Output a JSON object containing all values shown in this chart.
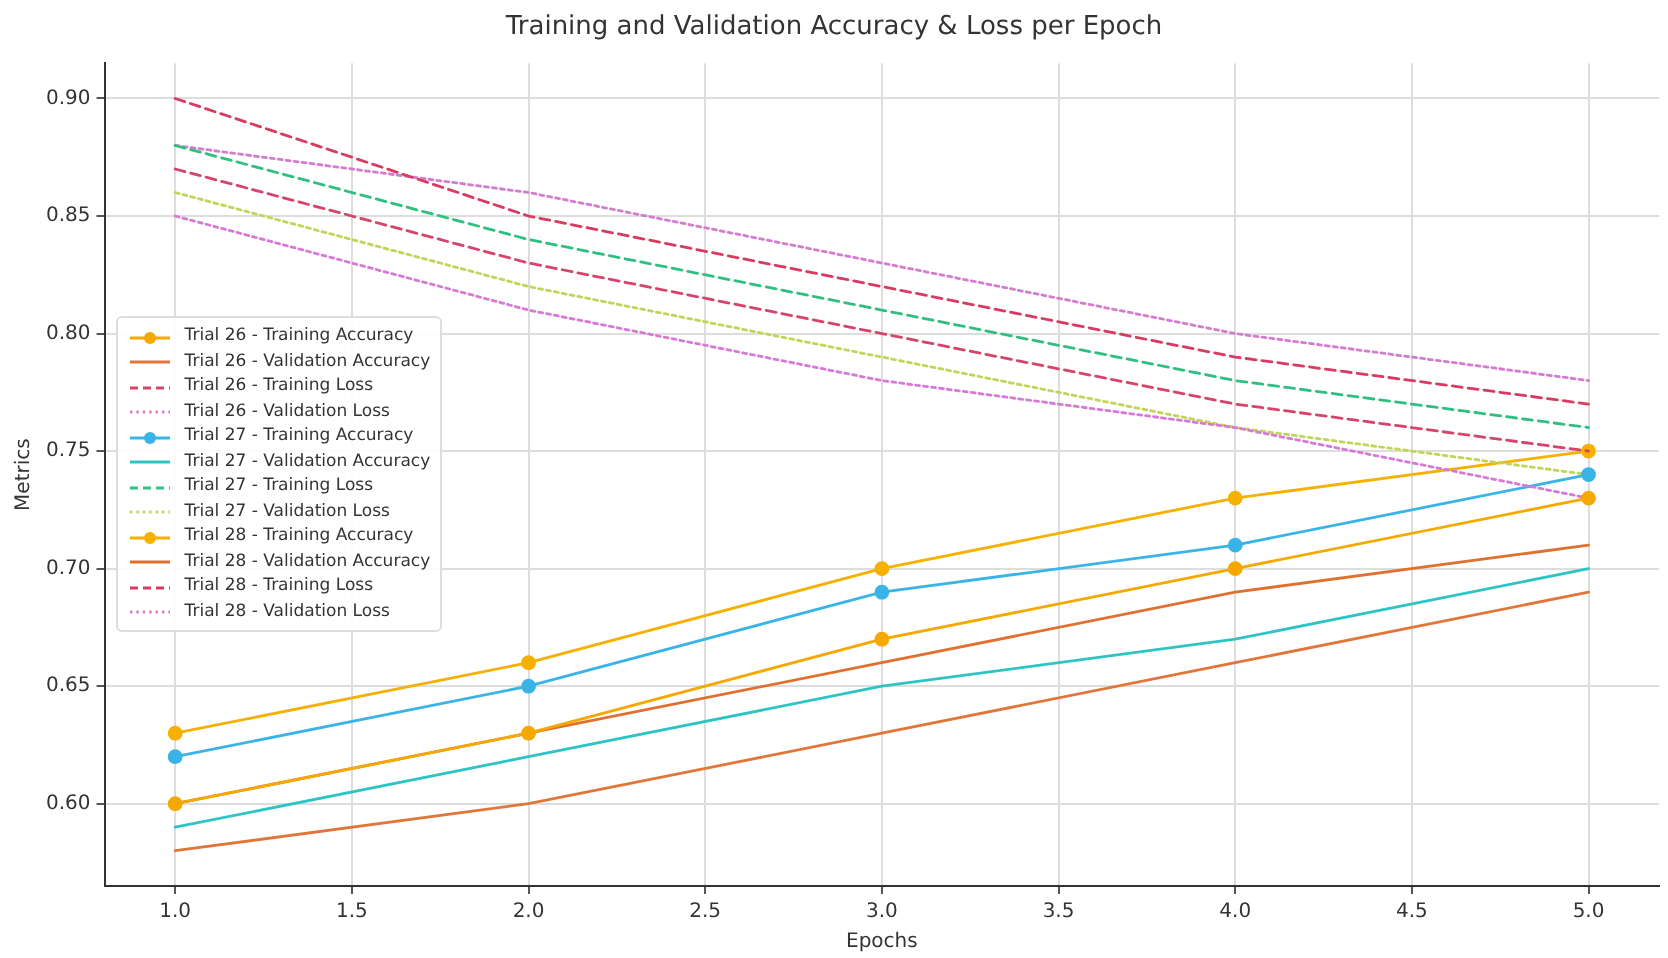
{
  "chart_data": {
    "type": "line",
    "title": "Training and Validation Accuracy & Loss per Epoch",
    "xlabel": "Epochs",
    "ylabel": "Metrics",
    "x": [
      1,
      2,
      3,
      4,
      5
    ],
    "xlim": [
      0.8,
      5.2
    ],
    "xticks": [
      {
        "value": 1,
        "label": "1.0"
      },
      {
        "value": 1.5,
        "label": "1.5"
      },
      {
        "value": 2,
        "label": "2.0"
      },
      {
        "value": 2.5,
        "label": "2.5"
      },
      {
        "value": 3,
        "label": "3.0"
      },
      {
        "value": 3.5,
        "label": "3.5"
      },
      {
        "value": 4,
        "label": "4.0"
      },
      {
        "value": 4.5,
        "label": "4.5"
      },
      {
        "value": 5,
        "label": "5.0"
      }
    ],
    "ylim": [
      0.565,
      0.915
    ],
    "yticks": [
      {
        "value": 0.6,
        "label": "0.60"
      },
      {
        "value": 0.65,
        "label": "0.65"
      },
      {
        "value": 0.7,
        "label": "0.70"
      },
      {
        "value": 0.75,
        "label": "0.75"
      },
      {
        "value": 0.8,
        "label": "0.80"
      },
      {
        "value": 0.85,
        "label": "0.85"
      },
      {
        "value": 0.9,
        "label": "0.90"
      }
    ],
    "grid": true,
    "legend": "center left",
    "series": [
      {
        "name": "Trial 26 - Training Accuracy",
        "color": "#f5a800",
        "marker": "circle",
        "line_style": "solid",
        "values": [
          0.6,
          0.63,
          0.67,
          0.7,
          0.73
        ]
      },
      {
        "name": "Trial 26 - Validation Accuracy",
        "color": "#e0763a",
        "marker": "none",
        "line_style": "solid",
        "values": [
          0.58,
          0.6,
          0.63,
          0.66,
          0.69
        ]
      },
      {
        "name": "Trial 26 - Training Loss",
        "color": "#d6446b",
        "marker": "none",
        "line_style": "dashed",
        "values": [
          0.87,
          0.83,
          0.8,
          0.77,
          0.75
        ]
      },
      {
        "name": "Trial 26 - Validation Loss",
        "color": "#d77ad6",
        "marker": "none",
        "line_style": "dotted",
        "values": [
          0.85,
          0.81,
          0.78,
          0.76,
          0.73
        ]
      },
      {
        "name": "Trial 27 - Training Accuracy",
        "color": "#3ab4e6",
        "marker": "circle",
        "line_style": "solid",
        "values": [
          0.62,
          0.65,
          0.69,
          0.71,
          0.74
        ]
      },
      {
        "name": "Trial 27 - Validation Accuracy",
        "color": "#2ec4c4",
        "marker": "none",
        "line_style": "solid",
        "values": [
          0.59,
          0.62,
          0.65,
          0.67,
          0.7
        ]
      },
      {
        "name": "Trial 27 - Training Loss",
        "color": "#2fbf7f",
        "marker": "none",
        "line_style": "dashed",
        "values": [
          0.88,
          0.84,
          0.81,
          0.78,
          0.76
        ]
      },
      {
        "name": "Trial 27 - Validation Loss",
        "color": "#c3d45a",
        "marker": "none",
        "line_style": "dotted",
        "values": [
          0.86,
          0.82,
          0.79,
          0.76,
          0.74
        ]
      },
      {
        "name": "Trial 28 - Training Accuracy",
        "color": "#f5b000",
        "marker": "circle",
        "line_style": "solid",
        "values": [
          0.63,
          0.66,
          0.7,
          0.73,
          0.75
        ]
      },
      {
        "name": "Trial 28 - Validation Accuracy",
        "color": "#e07030",
        "marker": "none",
        "line_style": "solid",
        "values": [
          0.6,
          0.63,
          0.66,
          0.69,
          0.71
        ]
      },
      {
        "name": "Trial 28 - Training Loss",
        "color": "#d93a60",
        "marker": "none",
        "line_style": "dashed",
        "values": [
          0.9,
          0.85,
          0.82,
          0.79,
          0.77
        ]
      },
      {
        "name": "Trial 28 - Validation Loss",
        "color": "#d37cd0",
        "marker": "none",
        "line_style": "dotted",
        "values": [
          0.88,
          0.86,
          0.83,
          0.8,
          0.78
        ]
      }
    ]
  }
}
